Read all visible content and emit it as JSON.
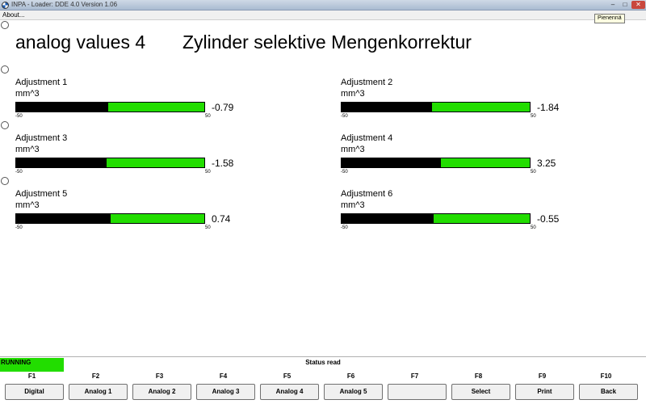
{
  "window": {
    "title": "INPA - Loader:  DDE 4.0 Version 1.06",
    "minimize_glyph": "–",
    "maximize_glyph": "□",
    "close_glyph": "✕"
  },
  "menu": {
    "about": "About..."
  },
  "tooltip": "Pienennä",
  "header": {
    "left": "analog values 4",
    "right": "Zylinder selektive Mengenkorrektur"
  },
  "gauges": [
    {
      "label": "Adjustment 1",
      "unit": "mm^3",
      "value": "-0.79",
      "min": "-50",
      "max": "50",
      "fill_fraction": 0.49
    },
    {
      "label": "Adjustment 2",
      "unit": "mm^3",
      "value": "-1.84",
      "min": "-50",
      "max": "50",
      "fill_fraction": 0.48
    },
    {
      "label": "Adjustment 3",
      "unit": "mm^3",
      "value": "-1.58",
      "min": "-50",
      "max": "50",
      "fill_fraction": 0.48
    },
    {
      "label": "Adjustment 4",
      "unit": "mm^3",
      "value": "3.25",
      "min": "-50",
      "max": "50",
      "fill_fraction": 0.53
    },
    {
      "label": "Adjustment 5",
      "unit": "mm^3",
      "value": "0.74",
      "min": "-50",
      "max": "50",
      "fill_fraction": 0.5
    },
    {
      "label": "Adjustment 6",
      "unit": "mm^3",
      "value": "-0.55",
      "min": "-50",
      "max": "50",
      "fill_fraction": 0.49
    }
  ],
  "status": {
    "running": "RUNNING",
    "running_color": "#22dd00",
    "text": "Status read"
  },
  "function_keys": [
    {
      "key": "F1",
      "button": "Digital"
    },
    {
      "key": "F2",
      "button": "Analog 1"
    },
    {
      "key": "F3",
      "button": "Analog 2"
    },
    {
      "key": "F4",
      "button": "Analog 3"
    },
    {
      "key": "F5",
      "button": "Analog 4"
    },
    {
      "key": "F6",
      "button": "Analog 5"
    },
    {
      "key": "F7",
      "button": ""
    },
    {
      "key": "F8",
      "button": "Select"
    },
    {
      "key": "F9",
      "button": "Print"
    },
    {
      "key": "F10",
      "button": "Back"
    }
  ],
  "colors": {
    "bar_green": "#22dd00",
    "bar_fill": "#000000"
  }
}
